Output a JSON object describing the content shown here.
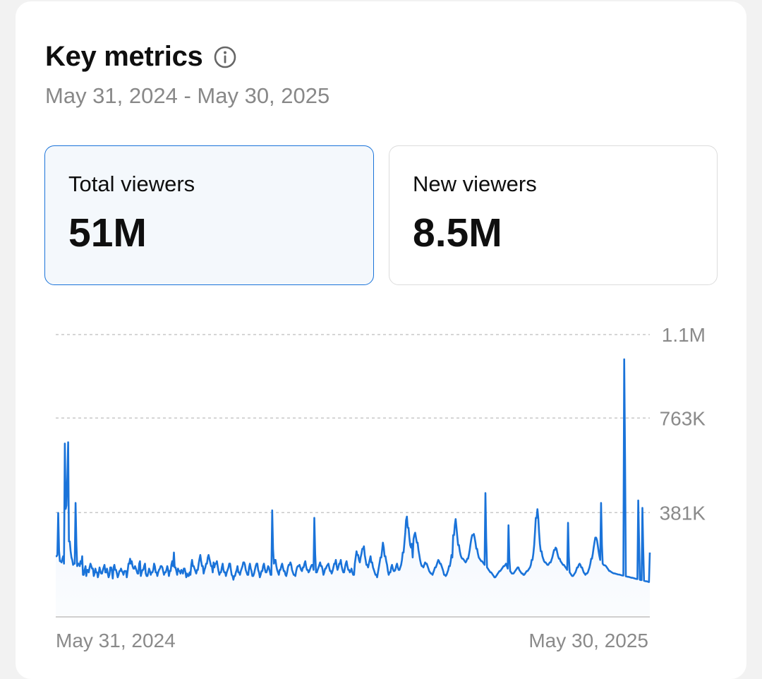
{
  "header": {
    "title": "Key metrics",
    "info_icon": "info-circle-icon",
    "date_range": "May 31, 2024 - May 30, 2025"
  },
  "metrics": [
    {
      "label": "Total viewers",
      "value": "51M",
      "selected": true
    },
    {
      "label": "New viewers",
      "value": "8.5M",
      "selected": false
    }
  ],
  "colors": {
    "accent": "#1a73d9",
    "selected_bg": "#f4f8fc",
    "muted_text": "#888888"
  },
  "chart_data": {
    "type": "line",
    "x_start_label": "May 31, 2024",
    "x_end_label": "May 30, 2025",
    "y_ticks": [
      {
        "value": 381000,
        "label": "381K"
      },
      {
        "value": 763000,
        "label": "763K"
      },
      {
        "value": 1100000,
        "label": "1.1M"
      }
    ],
    "ylim": [
      0,
      1100000
    ],
    "grid": true,
    "series": [
      {
        "values": [
          205000,
          210000,
          185000,
          195000,
          185000,
          180000,
          195000,
          205000,
          175000,
          245000,
          410000,
          520000,
          665000,
          265000,
          225000,
          200000,
          190000,
          170000,
          175000,
          165000,
          175000,
          165000,
          175000,
          165000,
          185000,
          175000,
          205000,
          130000,
          150000,
          165000,
          125000,
          150000,
          140000,
          160000,
          175000,
          165000,
          155000,
          125000,
          135000,
          155000,
          140000,
          120000,
          135000,
          160000,
          145000,
          135000,
          150000,
          160000,
          170000,
          140000,
          155000,
          135000,
          120000,
          130000,
          160000,
          145000,
          115000,
          160000,
          170000,
          150000,
          135000,
          120000,
          130000,
          145000,
          155000,
          145000,
          140000,
          130000,
          145000,
          145000,
          120000,
          145000,
          175000,
          195000,
          175000,
          185000,
          165000,
          155000,
          165000,
          155000,
          145000,
          135000,
          175000,
          185000,
          125000,
          140000,
          150000,
          165000,
          175000,
          135000,
          125000,
          140000,
          155000,
          145000,
          130000,
          140000,
          150000,
          175000,
          165000,
          140000,
          125000,
          140000,
          150000,
          155000,
          165000,
          160000,
          145000,
          130000,
          140000,
          150000,
          165000,
          150000,
          125000,
          145000,
          170000,
          185000,
          165000,
          150000,
          160000,
          145000,
          130000,
          155000,
          145000,
          135000,
          150000,
          145000,
          135000,
          155000,
          140000,
          120000,
          135000,
          125000,
          140000,
          130000,
          170000,
          190000,
          165000,
          155000,
          145000,
          135000,
          150000,
          175000,
          195000,
          210000,
          185000,
          165000,
          135000,
          150000,
          160000,
          175000,
          200000,
          210000,
          195000,
          180000,
          165000,
          140000,
          150000,
          160000,
          175000,
          185000,
          165000,
          145000,
          130000,
          140000,
          160000,
          175000,
          150000,
          140000,
          125000,
          140000,
          150000,
          160000,
          175000,
          150000,
          130000,
          125000,
          110000,
          125000,
          140000,
          150000,
          165000,
          140000,
          130000,
          145000,
          155000,
          165000,
          180000,
          170000,
          150000,
          140000,
          130000,
          160000,
          175000,
          155000,
          145000,
          125000,
          135000,
          150000,
          165000,
          175000,
          150000,
          140000,
          120000,
          130000,
          145000,
          165000,
          175000,
          155000,
          140000,
          150000,
          165000,
          160000,
          145000,
          130000,
          150000,
          160000,
          175000,
          190000,
          165000,
          150000,
          140000,
          130000,
          150000,
          165000,
          175000,
          160000,
          145000,
          130000,
          125000,
          140000,
          160000,
          170000,
          180000,
          170000,
          150000,
          140000,
          130000,
          125000,
          145000,
          160000,
          165000,
          170000,
          160000,
          150000,
          145000,
          160000,
          175000,
          185000,
          165000,
          150000,
          140000,
          145000,
          155000,
          165000,
          170000,
          150000,
          135000,
          120000,
          140000,
          150000,
          160000,
          170000,
          180000,
          165000,
          150000,
          130000,
          140000,
          155000,
          165000,
          170000,
          175000,
          160000,
          145000,
          135000,
          145000,
          160000,
          175000,
          190000,
          165000,
          150000,
          160000,
          175000,
          190000,
          165000,
          150000,
          140000,
          160000,
          175000,
          185000,
          165000,
          150000,
          140000,
          145000,
          155000,
          140000,
          130000,
          175000,
          200000,
          225000,
          210000,
          190000,
          180000,
          200000,
          215000,
          235000,
          245000,
          210000,
          190000,
          170000,
          160000,
          175000,
          190000,
          205000,
          180000,
          160000,
          150000,
          140000,
          130000,
          120000,
          140000,
          160000,
          180000,
          200000,
          230000,
          260000,
          240000,
          205000,
          185000,
          170000,
          145000,
          130000,
          140000,
          160000,
          170000,
          155000,
          145000,
          150000,
          165000,
          175000,
          160000,
          150000,
          160000,
          170000,
          190000,
          220000,
          260000,
          300000,
          350000,
          365000,
          320000,
          280000,
          250000,
          240000,
          255000,
          275000,
          290000,
          300000,
          280000,
          260000,
          230000,
          210000,
          190000,
          175000,
          165000,
          160000,
          170000,
          180000,
          175000,
          165000,
          155000,
          145000,
          140000,
          135000,
          130000,
          140000,
          150000,
          160000,
          170000,
          180000,
          190000,
          185000,
          175000,
          165000,
          155000,
          145000,
          130000,
          125000,
          130000,
          140000,
          150000,
          165000,
          185000,
          210000,
          245000,
          290000,
          330000,
          355000,
          320000,
          285000,
          250000,
          225000,
          210000,
          200000,
          195000,
          190000,
          185000,
          180000,
          185000,
          195000,
          210000,
          230000,
          255000,
          275000,
          290000,
          295000,
          280000,
          260000,
          235000,
          215000,
          200000,
          195000,
          190000,
          185000,
          180000,
          175000,
          170000,
          165000,
          160000,
          155000,
          150000,
          145000,
          140000,
          135000,
          130000,
          125000,
          120000,
          125000,
          130000,
          135000,
          140000,
          145000,
          150000,
          155000,
          160000,
          165000,
          170000,
          175000,
          165000,
          155000,
          150000,
          145000,
          140000,
          135000,
          135000,
          140000,
          145000,
          150000,
          155000,
          160000,
          150000,
          145000,
          140000,
          135000,
          130000,
          130000,
          135000,
          140000,
          145000,
          150000,
          155000,
          160000,
          170000,
          190000,
          215000,
          250000,
          300000,
          360000,
          395000,
          360000,
          300000,
          255000,
          225000,
          205000,
          195000,
          185000,
          180000,
          175000,
          170000,
          170000,
          175000,
          180000,
          190000,
          200000,
          215000,
          230000,
          240000,
          235000,
          220000,
          205000,
          195000,
          185000,
          180000,
          175000,
          170000,
          165000,
          160000,
          155000,
          150000,
          145000,
          140000,
          135000,
          130000,
          125000,
          130000,
          135000,
          140000,
          150000,
          160000,
          170000,
          175000,
          170000,
          160000,
          150000,
          140000,
          135000,
          130000,
          135000,
          140000,
          150000,
          160000,
          175000,
          195000,
          215000,
          240000,
          260000,
          280000,
          270000,
          250000,
          225000,
          205000,
          190000,
          180000,
          175000,
          170000,
          168000,
          165000,
          160000,
          155000,
          150000,
          145000,
          142000,
          140000,
          138000,
          136000,
          135000,
          134000,
          133000,
          132000,
          131000,
          130000,
          129000,
          128000,
          127000,
          126000,
          125000,
          124000,
          123000,
          122000,
          121000,
          120000,
          119000,
          118000,
          117000,
          116000,
          115000,
          114000,
          113000,
          112000,
          111000,
          110000,
          109000,
          108000,
          107000,
          106000,
          105000,
          104000,
          103000,
          102000,
          101000,
          100000
        ]
      }
    ]
  }
}
